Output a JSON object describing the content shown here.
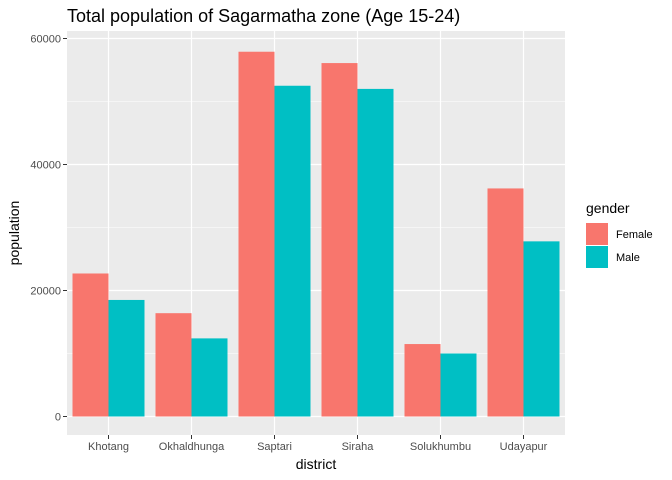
{
  "chart_data": {
    "type": "bar",
    "title": "Total population of Sagarmatha zone (Age 15-24)",
    "xlabel": "district",
    "ylabel": "population",
    "categories": [
      "Khotang",
      "Okhaldhunga",
      "Saptari",
      "Siraha",
      "Solukhumbu",
      "Udayapur"
    ],
    "series": [
      {
        "name": "Female",
        "color": "#F8766D",
        "values": [
          22700,
          16400,
          57900,
          56100,
          11500,
          36200
        ]
      },
      {
        "name": "Male",
        "color": "#00BFC4",
        "values": [
          18500,
          12400,
          52500,
          52000,
          10000,
          27800
        ]
      }
    ],
    "ylim": [
      0,
      62000
    ],
    "yticks": [
      0,
      20000,
      40000,
      60000
    ],
    "ytick_labels": [
      "0",
      "20000",
      "40000",
      "60000"
    ],
    "grid": true,
    "legend": {
      "title": "gender",
      "position": "right"
    },
    "panel_color": "#EBEBEB"
  }
}
